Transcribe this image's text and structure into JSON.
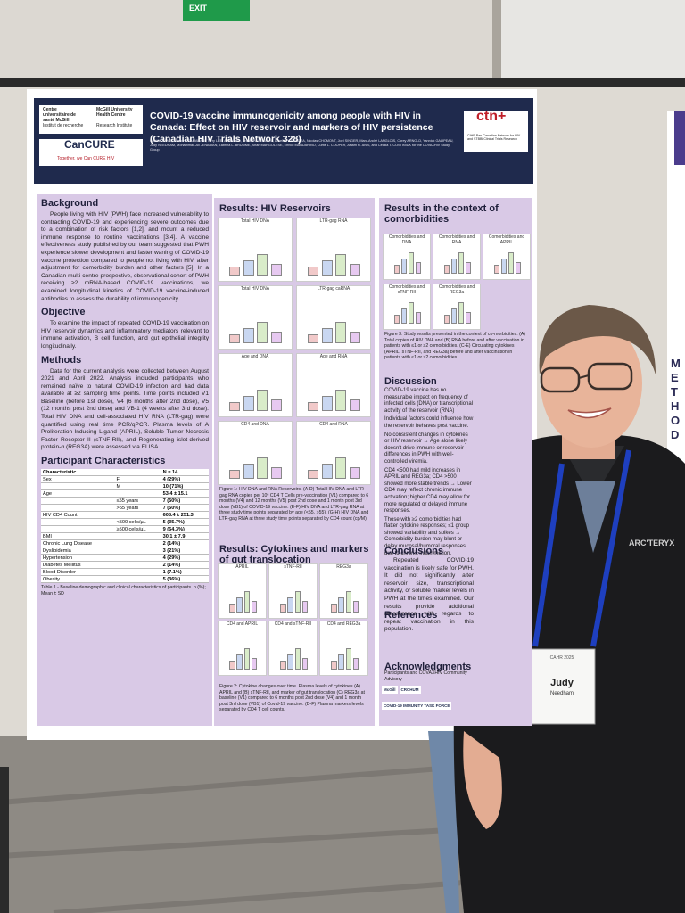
{
  "exit_sign": {
    "label": "EXIT"
  },
  "poster": {
    "logos": {
      "muhc_fr": "Centre universitaire de santé McGill",
      "muhc_en": "McGill University Health Centre",
      "ri_fr": "Institut de recherche",
      "ri_en": "Research Institute",
      "cancure": "CanCURE",
      "cancure_tag": "Together, we Can CURE HIV",
      "ctn": "ctn+",
      "ctn_tag": "CIHR Pan-Canadian Network for HIV and STBBI Clinical Trials Research"
    },
    "title": "COVID-19 vaccine immunogenicity among people with HIV in Canada: Effect on HIV reservoir and markers of HIV persistence (Canadian HIV Trials Network 328)",
    "authors": "Kristina KANG, Suzanne SAMARANI, Terry LEE, Ali AHMAD, Branka VULESEVIC, Amelia PAGLIUZZA, Nicolas CHOMONT, Joel SINGER, Marc-André LANGLOIS, Corey ARNOLD, Yannick GALIPEAU, Judy NEEDHAM, Mohammad-Ali JENABIAN, Zabrina L. BRUMME, Shari MARGOLESE, Enrico MANDARINO, Curtis L. COOPER, Aslam H. ANIS, and Cecilia T. COSTINIUK for the COVAXHIV Study Group",
    "background": {
      "heading": "Background",
      "text": "People living with HIV (PWH) face increased vulnerability to contracting COVID-19 and experiencing severe outcomes due to a combination of risk factors [1,2], and mount a reduced immune response to routine vaccinations [3,4]. A vaccine effectiveness study published by our team suggested that PWH experience slower development and faster waning of COVID-19 vaccine protection compared to people not living with HIV, after adjustment for comorbidity burden and other factors [5]. In a Canadian multi-centre prospective, observational cohort of PWH receiving ≥2 mRNA-based COVID-19 vaccinations, we examined longitudinal kinetics of COVID-19 vaccine-induced antibodies to assess the durability of immunogenicity."
    },
    "objective": {
      "heading": "Objective",
      "text": "To examine the impact of repeated COVID-19 vaccination on HIV reservoir dynamics and inflammatory mediators relevant to immune activation, B cell function, and gut epithelial integrity longitudinally."
    },
    "methods": {
      "heading": "Methods",
      "text": "Data for the current analysis were collected between August 2021 and April 2022. Analysis included participants who remained naïve to natural COVID-19 infection and had data available at ≥2 sampling time points. Time points included V1 Baseline (before 1st dose), V4 (6 months after 2nd dose), V5 (12 months post 2nd dose) and VB-1 (4 weeks after 3rd dose). Total HIV DNA and cell-associated HIV RNA (LTR-gag) were quantified using real time PCR/qPCR. Plasma levels of A Proliferation-Inducing Ligand (APRIL), Soluble Tumor Necrosis Factor Receptor II (sTNF-RII), and Regenerating islet-derived protein-α (REG3A) were assessed via ELISA."
    },
    "participants": {
      "heading": "Participant Characteristics",
      "table": {
        "rows": [
          [
            "Characteristic",
            "",
            "N = 14"
          ],
          [
            "Sex",
            "F",
            "4 (29%)"
          ],
          [
            "",
            "M",
            "10 (71%)"
          ],
          [
            "Age",
            "",
            "53.4 ± 15.1"
          ],
          [
            "",
            "≤55 years",
            "7 (50%)"
          ],
          [
            "",
            ">55 years",
            "7 (50%)"
          ],
          [
            "HIV CD4 Count",
            "",
            "608.4 ± 251.3"
          ],
          [
            "",
            "<500 cells/µL",
            "5 (35.7%)"
          ],
          [
            "",
            "≥500 cells/µL",
            "9 (64.3%)"
          ],
          [
            "BMI",
            "",
            "30.1 ± 7.9"
          ],
          [
            "Chronic Lung Disease",
            "",
            "2 (14%)"
          ],
          [
            "Dyslipidemia",
            "",
            "3 (21%)"
          ],
          [
            "Hypertension",
            "",
            "4 (29%)"
          ],
          [
            "Diabetes Mellitus",
            "",
            "2 (14%)"
          ],
          [
            "Blood Disorder",
            "",
            "1 (7.1%)"
          ],
          [
            "Obesity",
            "",
            "5 (36%)"
          ]
        ]
      },
      "caption": "Table 1 - Baseline demographic and clinical characteristics of participants. n (%); Mean ± SD"
    },
    "reservoirs": {
      "heading": "Results: HIV Reservoirs",
      "panels": [
        "Total HIV DNA",
        "LTR-gag RNA",
        "Total HIV DNA",
        "LTR-gag caRNA",
        "Age and DNA",
        "Age and RNA",
        "CD4 and DNA",
        "CD4 and RNA"
      ],
      "caption": "Figure 1: HIV DNA and RNA Reservoirs. (A-D) Total HIV DNA and LTR-gag RNA copies per 10⁶ CD4 T Cells pre-vaccination (V1) compared to 6 months (V4) and 12 months (V5) post 2nd dose and 1 month post 3rd dose (VB1) of COVID-19 vaccine. (E-F) HIV DNA and LTR-gag RNA at three study time points separated by age (<55, >55). (G-H) HIV DNA and LTR-gag RNA at three study time points separated by CD4 count (cp/M)."
    },
    "cytokines": {
      "heading": "Results: Cytokines and markers of gut translocation",
      "panels": [
        "APRIL",
        "sTNF-RII",
        "REG3a",
        "CD4 and APRIL",
        "CD4 and sTNF-RII",
        "CD4 and REG3a"
      ],
      "caption": "Figure 2: Cytokine changes over time. Plasma levels of cytokines (A) APRIL and (B) sTNF-RII, and marker of gut translocation (C) REG3a at baseline (V1) compared to 6 months post 2nd dose (V4) and 1 month post 3rd dose (VB1) of Covid-19 vaccine. (D-F) Plasma markers levels separated by CD4 T cell counts."
    },
    "comorbidities": {
      "heading": "Results in the context of comorbidities",
      "panels": [
        "Comorbidities and DNA",
        "Comorbidities and RNA",
        "Comorbidities and APRIL",
        "Comorbidities and sTNF-RII",
        "Comorbidities and REG3a"
      ],
      "caption": "Figure 3: Study results presented in the context of co-morbidities. (A) Total copies of HIV DNA and (B) RNA before and after vaccination in patients with ≤1 or ≥2 comorbidities. (C-E) Circulating cytokines (APRIL, sTNF-RII, and REG3a) before and after vaccination in patients with ≤1 or ≥2 comorbidities."
    },
    "discussion": {
      "heading": "Discussion",
      "bullets": [
        "COVID-19 vaccine has no measurable impact on frequency of infected cells (DNA) or transcriptional activity of the reservoir (RNA)",
        "Individual factors could influence how the reservoir behaves post vaccine.",
        "No consistent changes in cytokines or HIV reservoir → Age alone likely doesn't drive immune or reservoir differences in PWH with well-controlled viremia.",
        "CD4 <500 had mild increases in APRIL and REG3a; CD4 >500 showed more stable trends → Lower CD4 may reflect chronic immune activation; higher CD4 may allow for more regulated or delayed immune responses.",
        "Those with ≥2 comorbidities had flatter cytokine responses; ≤1 group showed variability and spikes → Comorbidity burden may blunt or delay mucosal/humoral responses due to chronic inflammation."
      ]
    },
    "conclusions": {
      "heading": "Conclusions",
      "text": "Repeated COVID-19 vaccination is likely safe for PWH. It did not significantly alter reservoir size, transcriptional activity, or soluble marker levels in PWH at the times examined. Our results provide additional reassurance with regards to repeat vaccination in this population."
    },
    "references": {
      "heading": "References"
    },
    "acknowledgments": {
      "heading": "Acknowledgments",
      "text": "Participants and COVAXHIV Community Advisory",
      "logos": [
        "McGill",
        "CRCHUM",
        "COVID-19 IMMUNITY TASK FORCE"
      ]
    }
  },
  "side_poster": {
    "letters": [
      "M",
      "E",
      "T",
      "H",
      "O",
      "D"
    ]
  },
  "badge": {
    "name": "Judy",
    "surname": "Needham",
    "event": "CAHR 2025"
  },
  "jacket_logo": "ARC'TERYX"
}
